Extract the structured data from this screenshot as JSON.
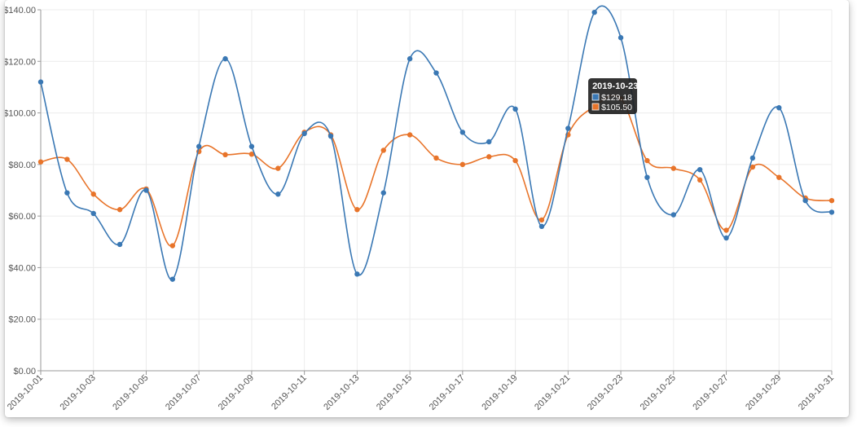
{
  "chart_data": {
    "type": "line",
    "title": "",
    "xlabel": "",
    "ylabel": "",
    "x": [
      "2019-10-01",
      "2019-10-02",
      "2019-10-03",
      "2019-10-04",
      "2019-10-05",
      "2019-10-06",
      "2019-10-07",
      "2019-10-08",
      "2019-10-09",
      "2019-10-10",
      "2019-10-11",
      "2019-10-12",
      "2019-10-13",
      "2019-10-14",
      "2019-10-15",
      "2019-10-16",
      "2019-10-17",
      "2019-10-18",
      "2019-10-19",
      "2019-10-20",
      "2019-10-21",
      "2019-10-22",
      "2019-10-23",
      "2019-10-24",
      "2019-10-25",
      "2019-10-26",
      "2019-10-27",
      "2019-10-28",
      "2019-10-29",
      "2019-10-30",
      "2019-10-31"
    ],
    "x_tick_labels": [
      "2019-10-01",
      "2019-10-03",
      "2019-10-05",
      "2019-10-07",
      "2019-10-09",
      "2019-10-11",
      "2019-10-13",
      "2019-10-15",
      "2019-10-17",
      "2019-10-19",
      "2019-10-21",
      "2019-10-23",
      "2019-10-25",
      "2019-10-27",
      "2019-10-29",
      "2019-10-31"
    ],
    "y_tick_labels": [
      "$0.00",
      "$20.00",
      "$40.00",
      "$60.00",
      "$80.00",
      "$100.00",
      "$120.00",
      "$140.00"
    ],
    "ylim": [
      0,
      140
    ],
    "grid": true,
    "smooth": true,
    "series": [
      {
        "color": "#3a78b4",
        "values": [
          112,
          69,
          61,
          49,
          70,
          35.5,
          87,
          121,
          87,
          68.5,
          92,
          91,
          37.5,
          69,
          121,
          115.5,
          92.5,
          88.8,
          101.5,
          56,
          94,
          139,
          129.18,
          75,
          60.5,
          78,
          51.5,
          82.5,
          102,
          66,
          61.5
        ]
      },
      {
        "color": "#e8742a",
        "values": [
          81,
          82,
          68.5,
          62.5,
          70.5,
          48.5,
          85,
          83.8,
          84,
          78.5,
          92.5,
          91.5,
          62.5,
          85.5,
          91.5,
          82.5,
          80,
          83,
          81.5,
          58.5,
          91.5,
          102.5,
          105.5,
          81.5,
          78.5,
          74,
          54.5,
          79,
          75,
          67,
          66
        ]
      }
    ],
    "tooltip": {
      "date": "2019-10-23",
      "index": 22,
      "items": [
        {
          "color": "#3a78b4",
          "value": "$129.18"
        },
        {
          "color": "#e8742a",
          "value": "$105.50"
        }
      ]
    }
  }
}
